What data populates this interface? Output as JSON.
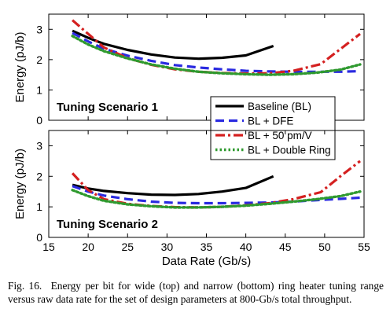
{
  "chart_data": [
    {
      "type": "line",
      "panel_label": "Tuning Scenario 1",
      "xlabel": "",
      "ylabel": "Energy (pJ/b)",
      "xlim": [
        15,
        55
      ],
      "ylim": [
        0,
        3.5
      ],
      "yticks": [
        "0",
        "1",
        "2",
        "3"
      ],
      "grid": false,
      "legend": "right",
      "series": [
        {
          "name": "Baseline (BL)",
          "color": "#000000",
          "style": "solid",
          "x": [
            18,
            20,
            22,
            25,
            28,
            31,
            34,
            37,
            40,
            43.5
          ],
          "y": [
            2.95,
            2.72,
            2.52,
            2.32,
            2.17,
            2.07,
            2.03,
            2.06,
            2.14,
            2.45
          ]
        },
        {
          "name": "BL + DFE",
          "color": "#2a2ae0",
          "style": "dashed",
          "x": [
            18,
            20,
            22,
            25,
            28,
            31,
            34,
            37,
            40,
            43,
            46,
            49,
            52,
            54.5
          ],
          "y": [
            2.88,
            2.6,
            2.36,
            2.13,
            1.96,
            1.82,
            1.74,
            1.68,
            1.63,
            1.61,
            1.6,
            1.6,
            1.6,
            1.62
          ]
        },
        {
          "name": "BL + 50 pm/V",
          "color": "#d42020",
          "style": "dashdot",
          "x": [
            18,
            20,
            22,
            25,
            28,
            31,
            34,
            37,
            40,
            43,
            46,
            49.5,
            52,
            54.5
          ],
          "y": [
            3.3,
            2.85,
            2.4,
            2.05,
            1.83,
            1.68,
            1.6,
            1.56,
            1.54,
            1.55,
            1.63,
            1.85,
            2.35,
            2.85
          ]
        },
        {
          "name": "BL + Double Ring",
          "color": "#2f9a2f",
          "style": "dotted",
          "x": [
            18,
            20,
            22,
            25,
            28,
            31,
            34,
            37,
            40,
            43,
            46,
            49,
            52,
            54.5
          ],
          "y": [
            2.78,
            2.5,
            2.28,
            2.04,
            1.84,
            1.7,
            1.6,
            1.55,
            1.52,
            1.5,
            1.52,
            1.57,
            1.67,
            1.84
          ]
        }
      ]
    },
    {
      "type": "line",
      "panel_label": "Tuning Scenario 2",
      "xlabel": "Data Rate (Gb/s)",
      "ylabel": "Energy (pJ/b)",
      "xlim": [
        15,
        55
      ],
      "ylim": [
        0,
        3.5
      ],
      "yticks": [
        "0",
        "1",
        "2",
        "3"
      ],
      "xticks": [
        "15",
        "20",
        "25",
        "30",
        "35",
        "40",
        "45",
        "50",
        "55"
      ],
      "grid": false,
      "series": [
        {
          "name": "Baseline (BL)",
          "color": "#000000",
          "style": "solid",
          "x": [
            18,
            20,
            22,
            25,
            28,
            31,
            34,
            37,
            40,
            43.5
          ],
          "y": [
            1.72,
            1.6,
            1.52,
            1.45,
            1.4,
            1.39,
            1.42,
            1.5,
            1.62,
            2.0
          ]
        },
        {
          "name": "BL + DFE",
          "color": "#2a2ae0",
          "style": "dashed",
          "x": [
            18,
            20,
            22,
            25,
            28,
            31,
            34,
            37,
            40,
            43,
            46,
            49,
            52,
            54.5
          ],
          "y": [
            1.68,
            1.5,
            1.37,
            1.25,
            1.17,
            1.13,
            1.12,
            1.12,
            1.13,
            1.14,
            1.17,
            1.22,
            1.26,
            1.3
          ]
        },
        {
          "name": "BL + 50 pm/V",
          "color": "#d42020",
          "style": "dashdot",
          "x": [
            18,
            20,
            22,
            25,
            28,
            31,
            34,
            37,
            40,
            43,
            46,
            49.5,
            52,
            54.5
          ],
          "y": [
            2.1,
            1.55,
            1.25,
            1.1,
            1.03,
            0.99,
            0.98,
            1.0,
            1.05,
            1.12,
            1.25,
            1.48,
            2.0,
            2.5
          ]
        },
        {
          "name": "BL + Double Ring",
          "color": "#2f9a2f",
          "style": "dotted",
          "x": [
            18,
            20,
            22,
            25,
            28,
            31,
            34,
            37,
            40,
            43,
            46,
            49,
            52,
            54.5
          ],
          "y": [
            1.55,
            1.35,
            1.2,
            1.08,
            1.02,
            0.98,
            0.98,
            1.0,
            1.04,
            1.1,
            1.17,
            1.25,
            1.35,
            1.5
          ]
        }
      ]
    }
  ],
  "caption": {
    "label": "Fig. 16.",
    "text": "Energy per bit for wide (top) and narrow (bottom) ring heater tuning range versus raw data rate for the set of design parameters at 800-Gb/s total throughput."
  }
}
